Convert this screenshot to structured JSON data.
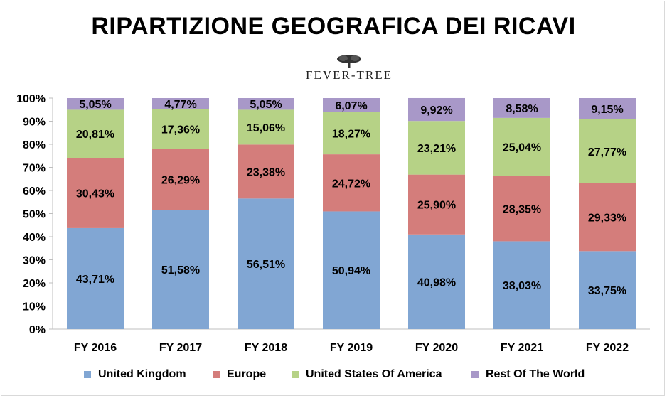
{
  "title": "RIPARTIZIONE GEOGRAFICA DEI RICAVI",
  "logo": {
    "text": "FEVER-TREE",
    "icon": "tree-icon"
  },
  "colors": {
    "uk": "#81a6d3",
    "europe": "#d47d7b",
    "usa": "#b6d286",
    "row": "#a898c8"
  },
  "chart_data": {
    "type": "bar",
    "stacked": true,
    "percent": true,
    "title": "RIPARTIZIONE GEOGRAFICA DEI RICAVI",
    "categories": [
      "FY 2016",
      "FY 2017",
      "FY 2018",
      "FY 2019",
      "FY 2020",
      "FY 2021",
      "FY 2022"
    ],
    "series": [
      {
        "name": "United Kingdom",
        "color": "#81a6d3",
        "values": [
          43.71,
          51.58,
          56.51,
          50.94,
          40.98,
          38.03,
          33.75
        ],
        "labels": [
          "43,71%",
          "51,58%",
          "56,51%",
          "50,94%",
          "40,98%",
          "38,03%",
          "33,75%"
        ]
      },
      {
        "name": "Europe",
        "color": "#d47d7b",
        "values": [
          30.43,
          26.29,
          23.38,
          24.72,
          25.9,
          28.35,
          29.33
        ],
        "labels": [
          "30,43%",
          "26,29%",
          "23,38%",
          "24,72%",
          "25,90%",
          "28,35%",
          "29,33%"
        ]
      },
      {
        "name": "United States Of America",
        "color": "#b6d286",
        "values": [
          20.81,
          17.36,
          15.06,
          18.27,
          23.21,
          25.04,
          27.77
        ],
        "labels": [
          "20,81%",
          "17,36%",
          "15,06%",
          "18,27%",
          "23,21%",
          "25,04%",
          "27,77%"
        ]
      },
      {
        "name": "Rest Of The World",
        "color": "#a898c8",
        "values": [
          5.05,
          4.77,
          5.05,
          6.07,
          9.92,
          8.58,
          9.15
        ],
        "labels": [
          "5,05%",
          "4,77%",
          "5,05%",
          "6,07%",
          "9,92%",
          "8,58%",
          "9,15%"
        ]
      }
    ],
    "yticks": [
      "0%",
      "10%",
      "20%",
      "30%",
      "40%",
      "50%",
      "60%",
      "70%",
      "80%",
      "90%",
      "100%"
    ],
    "ylim": [
      0,
      100
    ],
    "grid": false,
    "legend": "bottom"
  }
}
